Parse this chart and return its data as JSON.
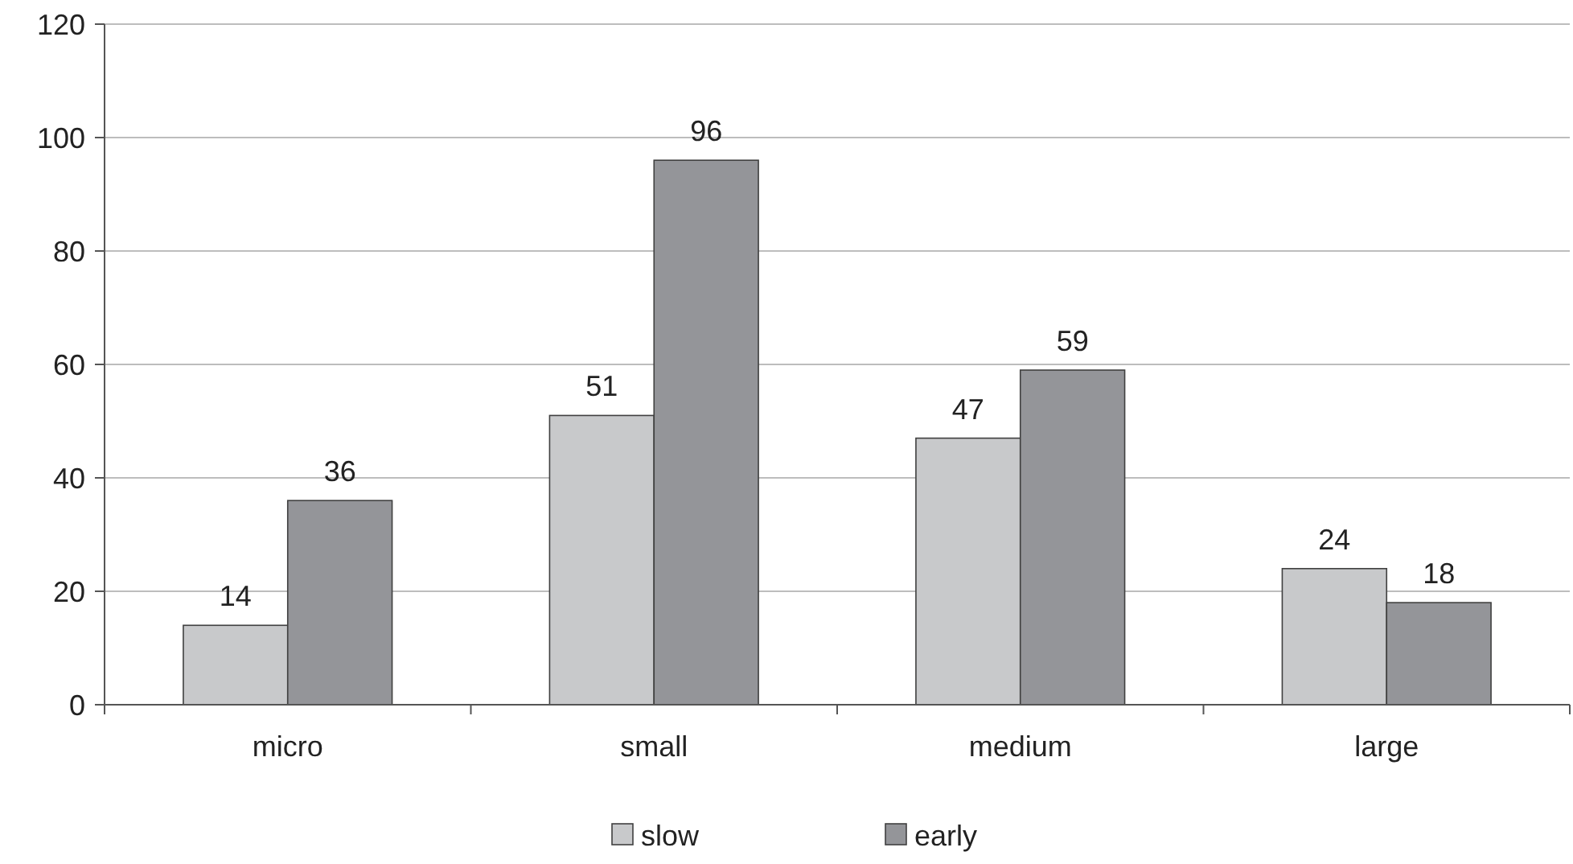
{
  "chart_data": {
    "type": "bar",
    "categories": [
      "micro",
      "small",
      "medium",
      "large"
    ],
    "series": [
      {
        "name": "slow",
        "color": "#c8c9cb",
        "values": [
          14,
          51,
          47,
          24
        ]
      },
      {
        "name": "early",
        "color": "#949599",
        "values": [
          36,
          96,
          59,
          18
        ]
      }
    ],
    "ylim": [
      0,
      120
    ],
    "yticks": [
      0,
      20,
      40,
      60,
      80,
      100,
      120
    ],
    "grid": "y",
    "legend": "bottom",
    "data_labels": true
  }
}
